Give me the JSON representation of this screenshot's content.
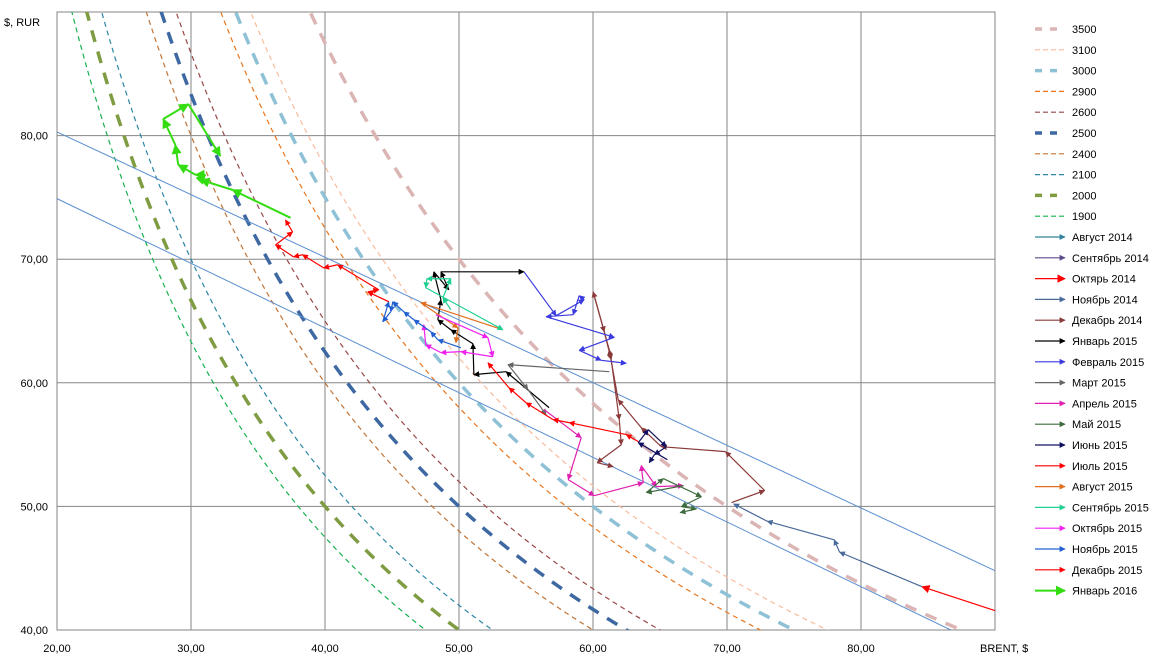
{
  "chart_data": {
    "type": "line",
    "title": "",
    "xlabel": "BRENT, $",
    "ylabel": "$, RUR",
    "xlim": [
      20,
      90
    ],
    "ylim": [
      40,
      90
    ],
    "x_ticks": [
      "20,00",
      "30,00",
      "40,00",
      "50,00",
      "60,00",
      "70,00",
      "80,00"
    ],
    "x_tick_values": [
      20,
      30,
      40,
      50,
      60,
      70,
      80
    ],
    "y_ticks": [
      "40,00",
      "50,00",
      "60,00",
      "70,00",
      "80,00"
    ],
    "y_tick_values": [
      40,
      50,
      60,
      70,
      80
    ],
    "grid": true,
    "legend_position": "right",
    "isolines": [
      {
        "name": "3500",
        "value": 3500,
        "color": "#dbb4b4",
        "thick": true
      },
      {
        "name": "3100",
        "value": 3100,
        "color": "#f9bc9c",
        "thick": false
      },
      {
        "name": "3000",
        "value": 3000,
        "color": "#8fc1d6",
        "thick": true
      },
      {
        "name": "2900",
        "value": 2900,
        "color": "#e8761e",
        "thick": false
      },
      {
        "name": "2600",
        "value": 2600,
        "color": "#994646",
        "thick": false
      },
      {
        "name": "2500",
        "value": 2500,
        "color": "#3d68a2",
        "thick": true
      },
      {
        "name": "2400",
        "value": 2400,
        "color": "#c07336",
        "thick": false
      },
      {
        "name": "2100",
        "value": 2100,
        "color": "#2a86a4",
        "thick": false
      },
      {
        "name": "2000",
        "value": 2000,
        "color": "#7f9c43",
        "thick": true
      },
      {
        "name": "1900",
        "value": 1900,
        "color": "#17b04f",
        "thick": false
      }
    ],
    "trend_lines": [
      {
        "color": "#5b8fd0",
        "points": [
          [
            20,
            80.3
          ],
          [
            90,
            44.8
          ]
        ]
      },
      {
        "color": "#5b8fd0",
        "points": [
          [
            20,
            74.9
          ],
          [
            86.7,
            40.0
          ]
        ]
      }
    ],
    "series": [
      {
        "name": "Август 2014",
        "color": "#31849b",
        "points": []
      },
      {
        "name": "Сентябрь 2014",
        "color": "#5f4a8b",
        "points": []
      },
      {
        "name": "Октярь 2014",
        "color": "#ff0000",
        "points": [
          [
            90.2,
            41.5
          ],
          [
            84.55,
            43.5
          ]
        ]
      },
      {
        "name": "Ноябрь 2014",
        "color": "#4a6a9a",
        "points": [
          [
            84.55,
            43.5
          ],
          [
            78.4,
            46.3
          ],
          [
            78.0,
            47.3
          ],
          [
            73.0,
            48.8
          ],
          [
            70.5,
            50.2
          ]
        ]
      },
      {
        "name": "Декабрь 2014",
        "color": "#8b3a3a",
        "points": [
          [
            70.34,
            50.31
          ],
          [
            72.81,
            51.28
          ],
          [
            69.89,
            54.43
          ],
          [
            65.1,
            54.83
          ],
          [
            63.6,
            56.37
          ],
          [
            61.88,
            58.63
          ],
          [
            61.21,
            62.68
          ],
          [
            60.01,
            67.36
          ],
          [
            60.84,
            64.13
          ],
          [
            61.36,
            61.87
          ],
          [
            61.96,
            57.02
          ],
          [
            62.11,
            54.99
          ],
          [
            60.31,
            53.54
          ],
          [
            61.51,
            53.22
          ]
        ]
      },
      {
        "name": "Январь 2015",
        "color": "#000000",
        "points": [
          [
            56.72,
            57.99
          ],
          [
            53.51,
            60.9
          ],
          [
            51.11,
            60.66
          ],
          [
            51.04,
            63.16
          ],
          [
            49.39,
            64.29
          ],
          [
            48.42,
            65.1
          ],
          [
            48.65,
            66.72
          ],
          [
            48.12,
            68.98
          ],
          [
            49.24,
            67.53
          ],
          [
            48.65,
            68.98
          ],
          [
            54.85,
            68.98
          ]
        ]
      },
      {
        "name": "Февраль 2015",
        "color": "#3a3adf",
        "points": [
          [
            54.85,
            68.98
          ],
          [
            57.25,
            65.43
          ],
          [
            59.34,
            66.72
          ],
          [
            58.97,
            67.05
          ],
          [
            58.52,
            65.51
          ],
          [
            56.5,
            65.35
          ],
          [
            61.59,
            63.68
          ],
          [
            58.97,
            62.63
          ],
          [
            60.61,
            61.82
          ],
          [
            62.48,
            61.58
          ]
        ]
      },
      {
        "name": "Март 2015",
        "color": "#666666",
        "points": [
          [
            61.21,
            60.9
          ],
          [
            53.66,
            61.47
          ],
          [
            55.15,
            59.45
          ],
          [
            56.5,
            57.43
          ]
        ]
      },
      {
        "name": "Апрель 2015",
        "color": "#e020b0",
        "points": [
          [
            56.35,
            57.83
          ],
          [
            59.12,
            55.56
          ],
          [
            58.15,
            52.17
          ],
          [
            60.09,
            50.87
          ],
          [
            63.75,
            51.92
          ],
          [
            63.6,
            53.3
          ],
          [
            64.73,
            51.6
          ],
          [
            66.75,
            51.68
          ]
        ]
      },
      {
        "name": "Май 2015",
        "color": "#3d6b3d",
        "points": [
          [
            66.75,
            51.68
          ],
          [
            63.98,
            51.12
          ],
          [
            65.25,
            52.25
          ],
          [
            68.09,
            50.79
          ],
          [
            66.6,
            49.98
          ],
          [
            67.72,
            49.8
          ],
          [
            66.5,
            49.5
          ]
        ]
      },
      {
        "name": "Июнь 2015",
        "color": "#101060",
        "points": [
          [
            65.55,
            53.78
          ],
          [
            63.38,
            55.16
          ],
          [
            64.13,
            56.21
          ],
          [
            65.47,
            54.83
          ],
          [
            64.58,
            54.18
          ],
          [
            64.2,
            53.54
          ]
        ]
      },
      {
        "name": "Июль 2015",
        "color": "#ff0000",
        "points": [
          [
            63.38,
            55.24
          ],
          [
            62.48,
            55.81
          ],
          [
            58.22,
            56.78
          ],
          [
            57.02,
            57.02
          ],
          [
            55.0,
            58.39
          ],
          [
            53.73,
            59.6
          ],
          [
            52.16,
            61.62
          ]
        ]
      },
      {
        "name": "Август 2015",
        "color": "#e07020",
        "points": [
          [
            53.28,
            64.29
          ],
          [
            47.15,
            66.48
          ],
          [
            49.92,
            64.45
          ],
          [
            49.77,
            63.24
          ]
        ]
      },
      {
        "name": "Сентябрь 2015",
        "color": "#20d090",
        "points": [
          [
            49.39,
            65.91
          ],
          [
            48.8,
            66.89
          ],
          [
            49.39,
            68.42
          ],
          [
            47.6,
            68.42
          ],
          [
            47.52,
            67.69
          ],
          [
            53.28,
            64.29
          ]
        ]
      },
      {
        "name": "Октябрь 2015",
        "color": "#f020f0",
        "points": [
          [
            48.27,
            65.51
          ],
          [
            52.16,
            63.65
          ],
          [
            52.53,
            62.11
          ],
          [
            50.14,
            62.52
          ],
          [
            48.65,
            62.44
          ],
          [
            47.52,
            63.08
          ],
          [
            47.37,
            64.7
          ]
        ]
      },
      {
        "name": "Ноябрь 2015",
        "color": "#2060d0",
        "points": [
          [
            50.14,
            62.84
          ],
          [
            48.42,
            63.48
          ],
          [
            47.9,
            64.13
          ],
          [
            46.63,
            65.1
          ],
          [
            45.88,
            65.75
          ],
          [
            45.06,
            66.56
          ],
          [
            44.91,
            65.75
          ],
          [
            44.31,
            64.94
          ],
          [
            44.76,
            66.56
          ]
        ]
      },
      {
        "name": "Декабрь 2015",
        "color": "#ff0000",
        "points": [
          [
            44.76,
            66.56
          ],
          [
            43.19,
            67.36
          ],
          [
            44.01,
            67.53
          ],
          [
            40.94,
            69.55
          ],
          [
            39.9,
            69.3
          ],
          [
            38.32,
            70.36
          ],
          [
            37.65,
            70.19
          ],
          [
            36.31,
            71.16
          ],
          [
            37.58,
            72.21
          ],
          [
            37.05,
            73.18
          ]
        ]
      },
      {
        "name": "Январь 2016",
        "color": "#33dd11",
        "points": [
          [
            37.43,
            73.35
          ],
          [
            33.09,
            75.61
          ],
          [
            30.7,
            76.42
          ],
          [
            31.07,
            76.83
          ],
          [
            30.33,
            76.83
          ],
          [
            29.05,
            77.63
          ],
          [
            28.83,
            79.25
          ],
          [
            27.93,
            81.34
          ],
          [
            29.8,
            82.55
          ],
          [
            32.19,
            78.35
          ]
        ]
      }
    ]
  }
}
